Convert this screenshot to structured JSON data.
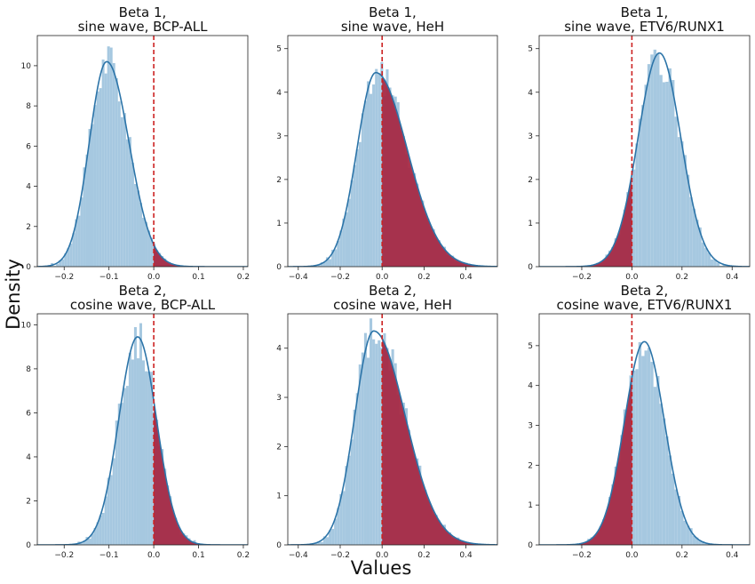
{
  "figure": {
    "xlabel": "Values",
    "ylabel": "Density"
  },
  "colors": {
    "hist_fill": "#a6c8e0",
    "kde_line": "#2c74a8",
    "shade_fill": "#a52a44",
    "threshold_line": "#cc2222",
    "axis": "#222222"
  },
  "chart_data": [
    {
      "type": "histogram-kde",
      "title_lines": [
        "Beta 1,",
        "sine wave, BCP-ALL"
      ],
      "xlim": [
        -0.26,
        0.21
      ],
      "ylim": [
        0,
        11.5
      ],
      "xticks": [
        -0.2,
        -0.1,
        0.0,
        0.1,
        0.2
      ],
      "yticks": [
        0,
        2,
        4,
        6,
        8,
        10
      ],
      "threshold": 0.0,
      "shaded_side": "right",
      "kde": {
        "mean": -0.105,
        "sd": 0.039,
        "peak": 10.2,
        "skew": 0.5
      },
      "bin_width": 0.006,
      "noise": 0.25
    },
    {
      "type": "histogram-kde",
      "title_lines": [
        "Beta 1,",
        "sine wave, HeH"
      ],
      "xlim": [
        -0.45,
        0.55
      ],
      "ylim": [
        0,
        5.3
      ],
      "xticks": [
        -0.4,
        -0.2,
        0.0,
        0.2,
        0.4
      ],
      "yticks": [
        0,
        1,
        2,
        3,
        4,
        5
      ],
      "threshold": 0.0,
      "shaded_side": "right",
      "kde": {
        "mean": -0.03,
        "sd": 0.09,
        "peak": 4.45,
        "skew": 1.2
      },
      "bin_width": 0.013,
      "noise": 0.12
    },
    {
      "type": "histogram-kde",
      "title_lines": [
        "Beta 1,",
        "sine wave, ETV6/RUNX1"
      ],
      "xlim": [
        -0.37,
        0.47
      ],
      "ylim": [
        0,
        5.3
      ],
      "xticks": [
        -0.2,
        0.0,
        0.2,
        0.4
      ],
      "yticks": [
        0,
        1,
        2,
        3,
        4,
        5
      ],
      "threshold": 0.0,
      "shaded_side": "left",
      "kde": {
        "mean": 0.11,
        "sd": 0.085,
        "peak": 4.9,
        "skew": 0.0
      },
      "bin_width": 0.012,
      "noise": 0.12
    },
    {
      "type": "histogram-kde",
      "title_lines": [
        "Beta 2,",
        "cosine wave, BCP-ALL"
      ],
      "xlim": [
        -0.26,
        0.21
      ],
      "ylim": [
        0,
        10.5
      ],
      "xticks": [
        -0.2,
        -0.1,
        0.0,
        0.1,
        0.2
      ],
      "yticks": [
        0,
        2,
        4,
        6,
        8,
        10
      ],
      "threshold": 0.0,
      "shaded_side": "right",
      "kde": {
        "mean": -0.036,
        "sd": 0.042,
        "peak": 9.45,
        "skew": 0.0
      },
      "bin_width": 0.006,
      "noise": 0.25
    },
    {
      "type": "histogram-kde",
      "title_lines": [
        "Beta 2,",
        "cosine wave, HeH"
      ],
      "xlim": [
        -0.45,
        0.55
      ],
      "ylim": [
        0,
        4.7
      ],
      "xticks": [
        -0.4,
        -0.2,
        0.0,
        0.2,
        0.4
      ],
      "yticks": [
        0,
        1,
        2,
        3,
        4
      ],
      "threshold": 0.0,
      "shaded_side": "right",
      "kde": {
        "mean": -0.04,
        "sd": 0.09,
        "peak": 4.35,
        "skew": 1.2
      },
      "bin_width": 0.013,
      "noise": 0.12
    },
    {
      "type": "histogram-kde",
      "title_lines": [
        "Beta 2,",
        "cosine wave, ETV6/RUNX1"
      ],
      "xlim": [
        -0.37,
        0.47
      ],
      "ylim": [
        0,
        5.8
      ],
      "xticks": [
        -0.2,
        0.0,
        0.2,
        0.4
      ],
      "yticks": [
        0,
        1,
        2,
        3,
        4,
        5
      ],
      "threshold": 0.0,
      "shaded_side": "left",
      "kde": {
        "mean": 0.05,
        "sd": 0.08,
        "peak": 5.1,
        "skew": 0.0
      },
      "bin_width": 0.012,
      "noise": 0.12
    }
  ]
}
